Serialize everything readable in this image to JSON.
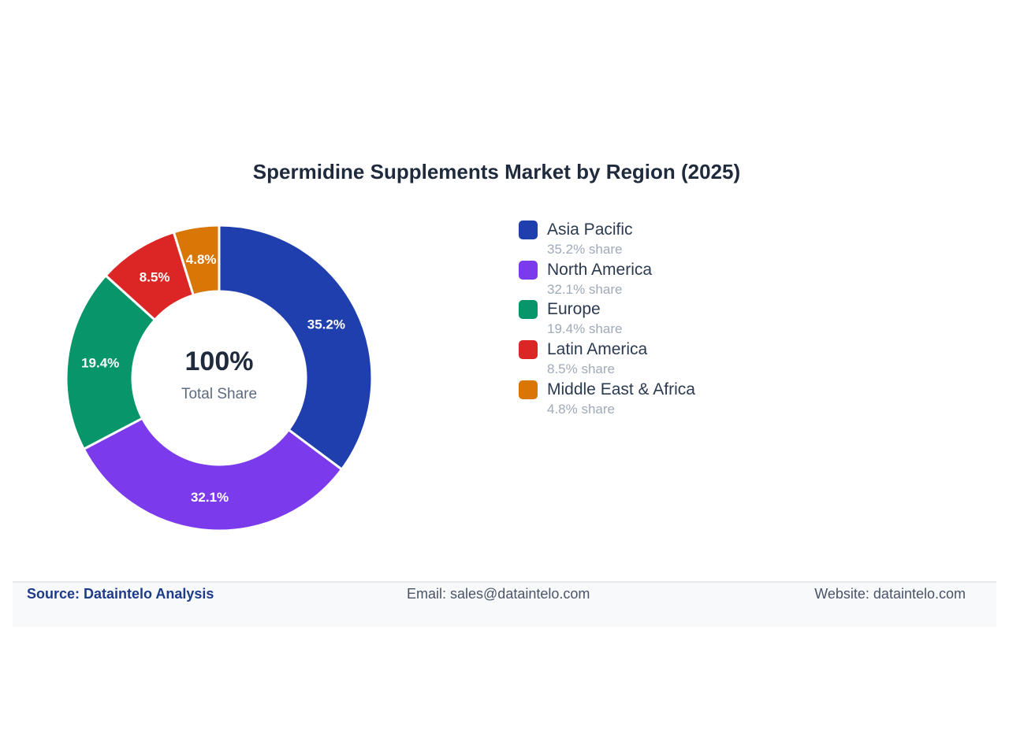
{
  "chart_data": {
    "type": "pie",
    "variant": "donut",
    "title": "Spermidine Supplements Market by Region (2025)",
    "categories": [
      "Asia Pacific",
      "North America",
      "Europe",
      "Latin America",
      "Middle East & Africa"
    ],
    "values": [
      35.2,
      32.1,
      19.4,
      8.5,
      4.8
    ],
    "slice_labels": [
      "35.2%",
      "32.1%",
      "19.4%",
      "8.5%",
      "4.8%"
    ],
    "colors": [
      "#1f3fae",
      "#7c3aed",
      "#079669",
      "#dc2626",
      "#d97706"
    ],
    "legend_position": "right",
    "center": {
      "value": "100%",
      "label": "Total Share"
    },
    "legend": [
      {
        "name": "Asia Pacific",
        "share": "35.2% share"
      },
      {
        "name": "North America",
        "share": "32.1% share"
      },
      {
        "name": "Europe",
        "share": "19.4% share"
      },
      {
        "name": "Latin America",
        "share": "8.5% share"
      },
      {
        "name": "Middle East & Africa",
        "share": "4.8% share"
      }
    ]
  },
  "footer": {
    "source": "Source: Dataintelo Analysis",
    "email": "Email: sales@dataintelo.com",
    "website": "Website: dataintelo.com"
  }
}
